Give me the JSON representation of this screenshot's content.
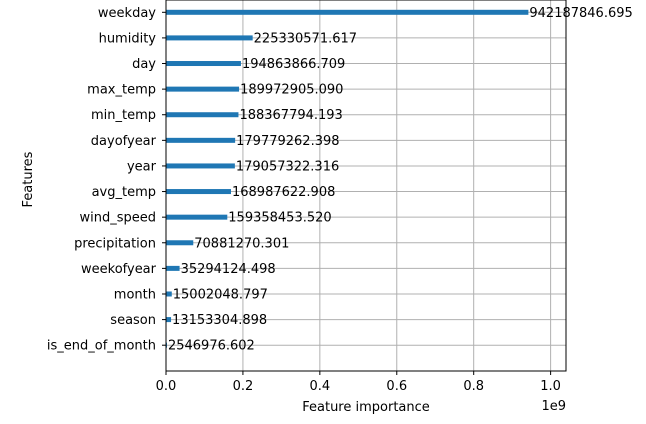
{
  "chart_data": {
    "type": "bar",
    "orientation": "horizontal",
    "title": "",
    "xlabel": "Feature importance",
    "ylabel": "Features",
    "x_scale_label": "1e9",
    "xlim": [
      0,
      1.04
    ],
    "x_ticks": [
      0.0,
      0.2,
      0.4,
      0.6,
      0.8,
      1.0
    ],
    "x_tick_labels": [
      "0.0",
      "0.2",
      "0.4",
      "0.6",
      "0.8",
      "1.0"
    ],
    "grid": true,
    "bar_color": "#1f77b4",
    "grid_color": "#b0b0b0",
    "categories": [
      "weekday",
      "humidity",
      "day",
      "max_temp",
      "min_temp",
      "dayofyear",
      "year",
      "avg_temp",
      "wind_speed",
      "precipitation",
      "weekofyear",
      "month",
      "season",
      "is_end_of_month"
    ],
    "values": [
      942187846.695,
      225330571.617,
      194863866.709,
      189972905.09,
      188367794.193,
      179779262.398,
      179057322.316,
      168987622.908,
      159358453.52,
      70881270.301,
      35294124.498,
      15002048.797,
      13153304.898,
      2546976.602
    ],
    "value_labels": [
      "942187846.695",
      "225330571.617",
      "194863866.709",
      "189972905.090",
      "188367794.193",
      "179779262.398",
      "179057322.316",
      "168987622.908",
      "159358453.520",
      "70881270.301",
      "35294124.498",
      "15002048.797",
      "13153304.898",
      "2546976.602"
    ]
  }
}
